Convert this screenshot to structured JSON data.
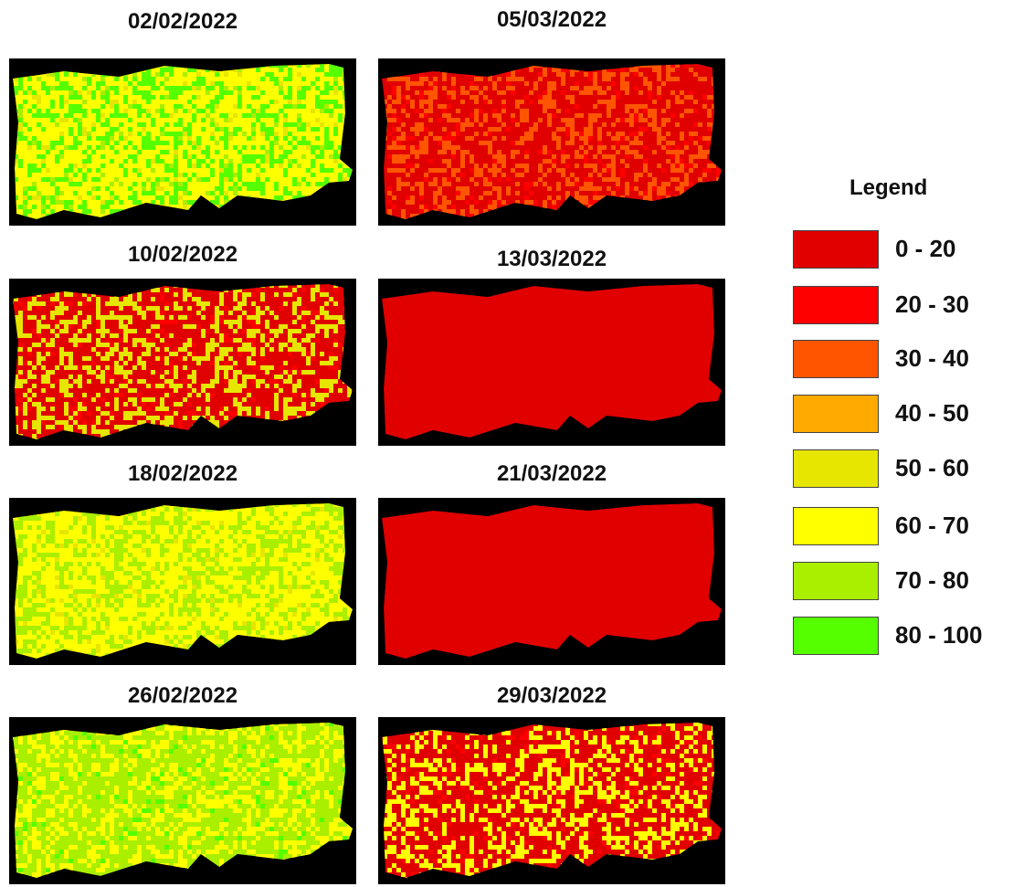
{
  "legend": {
    "title": "Legend",
    "classes": [
      {
        "label": "0 - 20",
        "color": "#e00000"
      },
      {
        "label": "20 - 30",
        "color": "#ff0000"
      },
      {
        "label": "30 - 40",
        "color": "#ff5500"
      },
      {
        "label": "40 - 50",
        "color": "#ffaa00"
      },
      {
        "label": "50 - 60",
        "color": "#e6e600"
      },
      {
        "label": "60 - 70",
        "color": "#ffff00"
      },
      {
        "label": "70 - 80",
        "color": "#aaee00"
      },
      {
        "label": "80 - 100",
        "color": "#55ff00"
      }
    ]
  },
  "maps": [
    {
      "date": "02/02/2022",
      "dominant_class": "60 - 70",
      "secondary_class": "80 - 100"
    },
    {
      "date": "05/03/2022",
      "dominant_class": "0 - 20",
      "secondary_class": "30 - 40"
    },
    {
      "date": "10/02/2022",
      "dominant_class": "0 - 20",
      "secondary_class": "50 - 60"
    },
    {
      "date": "13/03/2022",
      "dominant_class": "0 - 20",
      "secondary_class": "0 - 20"
    },
    {
      "date": "18/02/2022",
      "dominant_class": "60 - 70",
      "secondary_class": "70 - 80"
    },
    {
      "date": "21/03/2022",
      "dominant_class": "0 - 20",
      "secondary_class": "0 - 20"
    },
    {
      "date": "26/02/2022",
      "dominant_class": "70 - 80",
      "secondary_class": "60 - 70"
    },
    {
      "date": "29/03/2022",
      "dominant_class": "0 - 20",
      "secondary_class": "60 - 70"
    }
  ]
}
